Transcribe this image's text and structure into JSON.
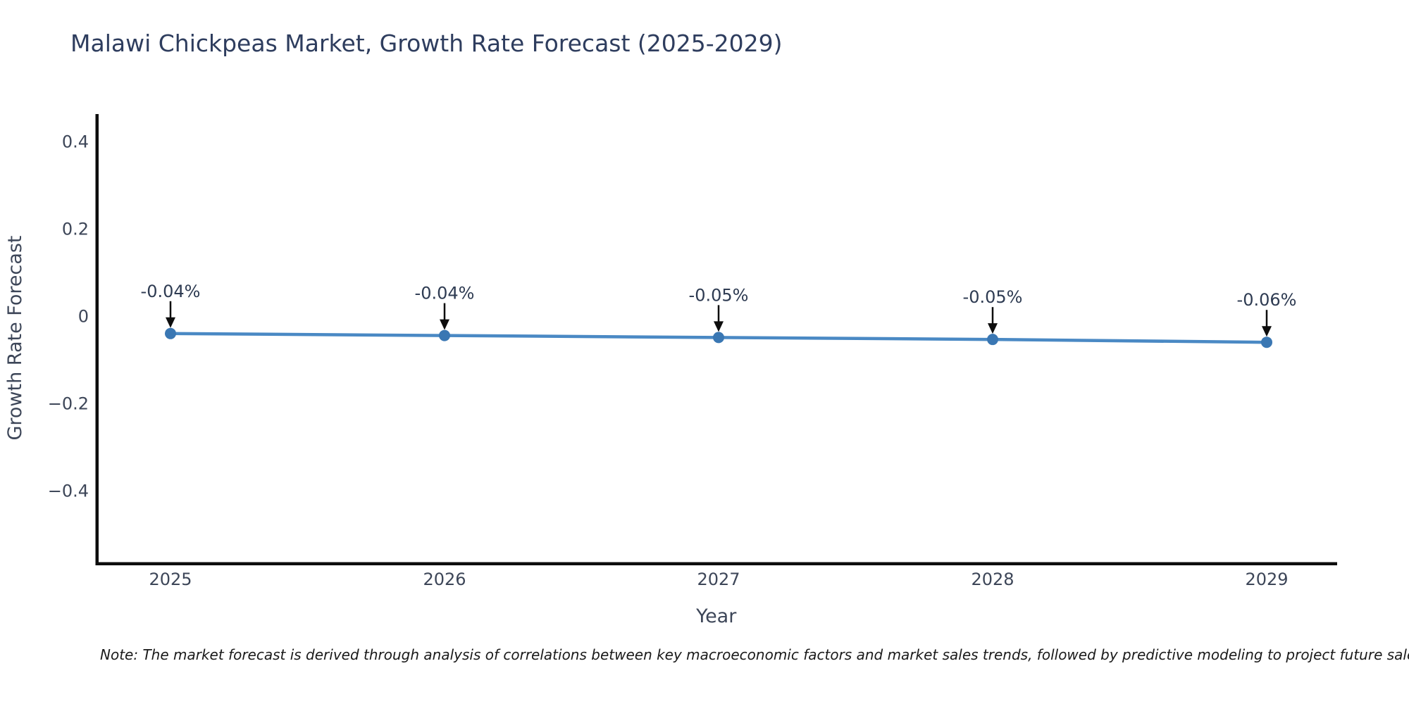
{
  "header": {
    "title": "Malawi Chickpeas Market, Growth Rate Forecast (2025-2029)"
  },
  "chart_data": {
    "type": "line",
    "title": "Malawi Chickpeas Market, Growth Rate Forecast (2025-2029)",
    "xlabel": "Year",
    "ylabel": "Growth Rate Forecast",
    "categories": [
      "2025",
      "2026",
      "2027",
      "2028",
      "2029"
    ],
    "series": [
      {
        "name": "Growth Rate Forecast",
        "values": [
          -0.04,
          -0.04,
          -0.05,
          -0.05,
          -0.06
        ],
        "values_precise": [
          -0.04,
          -0.0445,
          -0.049,
          -0.0535,
          -0.06
        ]
      }
    ],
    "data_labels": [
      "-0.04%",
      "-0.04%",
      "-0.05%",
      "-0.05%",
      "-0.06%"
    ],
    "ytick_labels": [
      "0.4",
      "0.2",
      "0",
      "−0.2",
      "−0.4"
    ],
    "ytick_values": [
      0.4,
      0.2,
      0,
      -0.2,
      -0.4
    ],
    "ylim": [
      -0.566,
      0.463
    ],
    "grid": false,
    "legend": "none",
    "annotation_arrows": true,
    "colors": {
      "line": "#4a89c4",
      "marker": "#3a77b3",
      "axis": "#0d0d0d",
      "arrow": "#0d0d0d",
      "title_text": "#2e3d5e",
      "tick_text": "#3d4658",
      "axis_label_text": "#3d4658",
      "annotation_text": "#2e3b52",
      "note_text": "#1a1a1a"
    }
  },
  "note": {
    "text": "Note: The market forecast is derived through analysis of correlations between key macroeconomic factors and market sales trends, followed by predictive modeling to project future sales"
  }
}
